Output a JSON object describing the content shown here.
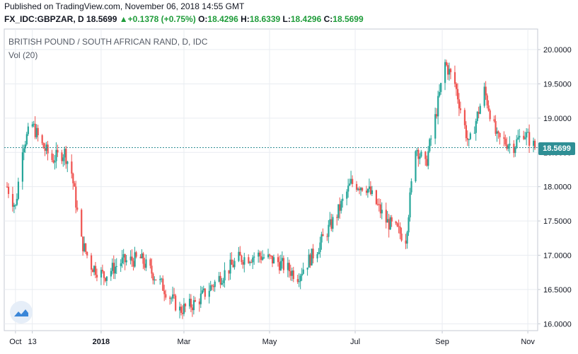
{
  "header": {
    "published": "Published on TradingView.com, November 06, 2018 14:55 GMT",
    "symbol": "FX_IDC:GBPZAR, D",
    "last": "18.5699",
    "change_arrow": "▲",
    "change": "+0.1378 (+0.75%)",
    "o_label": "O:",
    "o_value": "18.4296",
    "h_label": "H:",
    "h_value": "18.6339",
    "l_label": "L:",
    "l_value": "18.4296",
    "c_label": "C:",
    "c_value": "18.5699"
  },
  "chart_title": "BRITISH POUND / SOUTH AFRICAN RAND, D, IDC",
  "vol_label": "Vol (20)",
  "price_tag": "18.5699",
  "logo_icon": "tradingview-logo-icon",
  "colors": {
    "up": "#26a69a",
    "down": "#ef5350",
    "tag": "#2f8f95",
    "grid": "#e9ecf1"
  },
  "chart_data": {
    "type": "candlestick",
    "title": "BRITISH POUND / SOUTH AFRICAN RAND, D, IDC",
    "ylim": [
      15.9,
      20.3
    ],
    "y_ticks": [
      "20.0000",
      "19.5000",
      "19.0000",
      "18.5000",
      "18.0000",
      "17.5000",
      "17.0000",
      "16.5000",
      "16.0000"
    ],
    "y_tick_values": [
      20.0,
      19.5,
      19.0,
      18.5,
      18.0,
      17.5,
      17.0,
      16.5,
      16.0
    ],
    "x_ticks": [
      "Oct",
      "13",
      "2018",
      "Mar",
      "May",
      "Jul",
      "Sep",
      "Nov"
    ],
    "x_tick_dates": [
      "2017-11-01",
      "2017-11-13",
      "2018-01-01",
      "2018-03-01",
      "2018-05-01",
      "2018-07-01",
      "2018-09-01",
      "2018-11-01"
    ],
    "last_price": 18.5699,
    "anchors": [
      [
        "2017-10-26",
        18.0
      ],
      [
        "2017-11-01",
        17.7
      ],
      [
        "2017-11-06",
        18.6
      ],
      [
        "2017-11-13",
        18.9
      ],
      [
        "2017-11-20",
        18.6
      ],
      [
        "2017-11-27",
        18.4
      ],
      [
        "2017-12-06",
        18.5
      ],
      [
        "2017-12-11",
        18.2
      ],
      [
        "2017-12-18",
        17.2
      ],
      [
        "2017-12-25",
        16.85
      ],
      [
        "2018-01-03",
        16.7
      ],
      [
        "2018-01-15",
        16.9
      ],
      [
        "2018-01-29",
        16.95
      ],
      [
        "2018-02-12",
        16.6
      ],
      [
        "2018-02-26",
        16.2
      ],
      [
        "2018-03-09",
        16.3
      ],
      [
        "2018-03-23",
        16.6
      ],
      [
        "2018-04-09",
        16.95
      ],
      [
        "2018-04-23",
        17.0
      ],
      [
        "2018-05-07",
        16.9
      ],
      [
        "2018-05-21",
        16.7
      ],
      [
        "2018-06-04",
        17.1
      ],
      [
        "2018-06-18",
        17.6
      ],
      [
        "2018-06-28",
        18.05
      ],
      [
        "2018-07-09",
        18.0
      ],
      [
        "2018-07-23",
        17.5
      ],
      [
        "2018-08-06",
        17.25
      ],
      [
        "2018-08-13",
        18.6
      ],
      [
        "2018-08-20",
        18.3
      ],
      [
        "2018-08-27",
        19.0
      ],
      [
        "2018-09-03",
        19.8
      ],
      [
        "2018-09-10",
        19.5
      ],
      [
        "2018-09-20",
        18.6
      ],
      [
        "2018-10-01",
        19.4
      ],
      [
        "2018-10-10",
        18.7
      ],
      [
        "2018-10-22",
        18.6
      ],
      [
        "2018-10-29",
        18.8
      ],
      [
        "2018-11-06",
        18.57
      ]
    ]
  }
}
